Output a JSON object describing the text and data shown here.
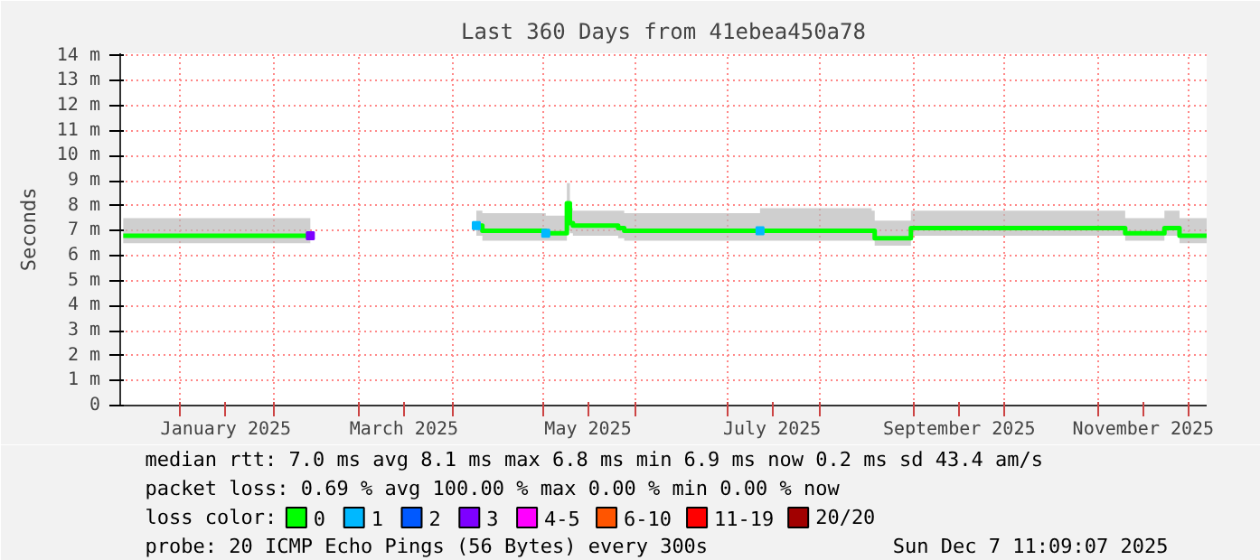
{
  "chart_data": {
    "type": "line",
    "title": "Last 360 Days from 41ebea450a78",
    "ylabel": "Seconds",
    "x": [
      "2024-12-13",
      "2025-02-13",
      "2025-03-31",
      "2025-04-09",
      "2025-04-11",
      "2025-05-02",
      "2025-05-08",
      "2025-05-09",
      "2025-05-10",
      "2025-05-11",
      "2025-05-26",
      "2025-05-28",
      "2025-07-12",
      "2025-08-18",
      "2025-08-19",
      "2025-08-30",
      "2025-08-31",
      "2025-11-08",
      "2025-11-10",
      "2025-11-22",
      "2025-11-23",
      "2025-11-27",
      "2025-11-28",
      "2025-12-07"
    ],
    "series": [
      {
        "name": "0",
        "color": "#00ff00",
        "values": [
          6.8,
          6.8,
          null,
          7.2,
          7.0,
          6.9,
          6.9,
          8.1,
          7.3,
          7.2,
          7.1,
          7.0,
          7.0,
          7.0,
          6.7,
          6.7,
          7.1,
          7.1,
          6.9,
          6.9,
          7.1,
          7.1,
          6.8,
          6.8
        ],
        "lower": [
          6.5,
          6.5,
          null,
          6.8,
          6.6,
          6.6,
          6.6,
          7.0,
          6.9,
          6.8,
          6.7,
          6.6,
          6.6,
          6.6,
          6.4,
          6.4,
          6.8,
          6.8,
          6.6,
          6.6,
          6.8,
          6.8,
          6.5,
          6.5
        ],
        "upper": [
          7.5,
          7.5,
          null,
          7.8,
          7.7,
          7.6,
          7.6,
          8.9,
          7.9,
          7.8,
          7.8,
          7.7,
          7.9,
          7.8,
          7.4,
          7.4,
          7.8,
          7.8,
          7.5,
          7.5,
          7.8,
          7.8,
          7.5,
          7.5
        ]
      },
      {
        "name": "1",
        "type": "scatter",
        "marker": "square",
        "color": "#00b8ff",
        "values": [
          null,
          null,
          null,
          7.2,
          null,
          6.9,
          null,
          null,
          null,
          null,
          null,
          null,
          7.0,
          null,
          null,
          null,
          null,
          null,
          null,
          null,
          null,
          null,
          null,
          null
        ]
      },
      {
        "name": "2",
        "type": "scatter",
        "marker": "square",
        "color": "#0059ff",
        "values": [
          null,
          null,
          null,
          null,
          null,
          null,
          null,
          null,
          null,
          null,
          null,
          null,
          null,
          null,
          null,
          null,
          null,
          null,
          null,
          null,
          null,
          null,
          null,
          null
        ]
      },
      {
        "name": "3",
        "type": "scatter",
        "marker": "square",
        "color": "#7e00ff",
        "values": [
          null,
          6.8,
          null,
          null,
          null,
          null,
          null,
          null,
          null,
          null,
          null,
          null,
          null,
          null,
          null,
          null,
          null,
          null,
          null,
          null,
          null,
          null,
          null,
          null
        ]
      },
      {
        "name": "4-5",
        "type": "scatter",
        "marker": "square",
        "color": "#ff00ff",
        "values": [
          null,
          null,
          null,
          null,
          null,
          null,
          null,
          null,
          null,
          null,
          null,
          null,
          null,
          null,
          null,
          null,
          null,
          null,
          null,
          null,
          null,
          null,
          null,
          null
        ]
      },
      {
        "name": "6-10",
        "type": "scatter",
        "marker": "square",
        "color": "#ff5500",
        "values": [
          null,
          null,
          null,
          null,
          null,
          null,
          null,
          null,
          null,
          null,
          null,
          null,
          null,
          null,
          null,
          null,
          null,
          null,
          null,
          null,
          null,
          null,
          null,
          null
        ]
      },
      {
        "name": "11-19",
        "type": "scatter",
        "marker": "square",
        "color": "#ff0000",
        "values": [
          null,
          null,
          null,
          null,
          null,
          null,
          null,
          null,
          null,
          null,
          null,
          null,
          null,
          null,
          null,
          null,
          null,
          null,
          null,
          null,
          null,
          null,
          null,
          null
        ]
      },
      {
        "name": "20/20",
        "type": "scatter",
        "marker": "square",
        "color": "#a10000",
        "values": [
          null,
          null,
          null,
          null,
          null,
          null,
          null,
          null,
          null,
          null,
          null,
          null,
          null,
          null,
          null,
          null,
          null,
          null,
          null,
          null,
          null,
          null,
          null,
          null
        ]
      }
    ],
    "legend_title": "loss color:",
    "legend": "bottom",
    "xlim": [
      "2024-12-12",
      "2025-12-07"
    ],
    "xticks": [
      {
        "value": "2025-01-01",
        "label": null
      },
      {
        "value": "2025-01-16",
        "label": "January 2025"
      },
      {
        "value": "2025-02-01",
        "label": null
      },
      {
        "value": "2025-03-01",
        "label": null
      },
      {
        "value": "2025-03-16",
        "label": "March 2025"
      },
      {
        "value": "2025-04-01",
        "label": null
      },
      {
        "value": "2025-05-01",
        "label": null
      },
      {
        "value": "2025-05-16",
        "label": "May 2025"
      },
      {
        "value": "2025-06-01",
        "label": null
      },
      {
        "value": "2025-07-01",
        "label": null
      },
      {
        "value": "2025-07-16",
        "label": "July 2025"
      },
      {
        "value": "2025-08-01",
        "label": null
      },
      {
        "value": "2025-09-01",
        "label": null
      },
      {
        "value": "2025-09-16",
        "label": "September 2025"
      },
      {
        "value": "2025-10-01",
        "label": null
      },
      {
        "value": "2025-11-01",
        "label": null
      },
      {
        "value": "2025-11-16",
        "label": "November 2025"
      },
      {
        "value": "2025-12-01",
        "label": null
      }
    ],
    "ylim": [
      0,
      14.1
    ],
    "yticks": [
      0,
      {
        "value": 1,
        "label": "1 m"
      },
      {
        "value": 2,
        "label": "2 m"
      },
      {
        "value": 3,
        "label": "3 m"
      },
      {
        "value": 4,
        "label": "4 m"
      },
      {
        "value": 5,
        "label": "5 m"
      },
      {
        "value": 6,
        "label": "6 m"
      },
      {
        "value": 7,
        "label": "7 m"
      },
      {
        "value": 8,
        "label": "8 m"
      },
      {
        "value": 9,
        "label": "9 m"
      },
      {
        "value": 10,
        "label": "10 m"
      },
      {
        "value": 11,
        "label": "11 m"
      },
      {
        "value": 12,
        "label": "12 m"
      },
      {
        "value": 13,
        "label": "13 m"
      },
      {
        "value": 14,
        "label": "14 m"
      }
    ],
    "grid": true,
    "annotations": [
      "median rtt:  7.0 ms avg  8.1 ms max  6.8 ms min  6.9 ms now  0.2 ms sd  43.4   am/s",
      "packet loss: 0.69 % avg  100.00 % max  0.00 % min  0.00 % now",
      "probe:       20 ICMP Echo Pings (56 Bytes) every 300s",
      "Sun Dec  7 11:09:07 2025"
    ]
  }
}
